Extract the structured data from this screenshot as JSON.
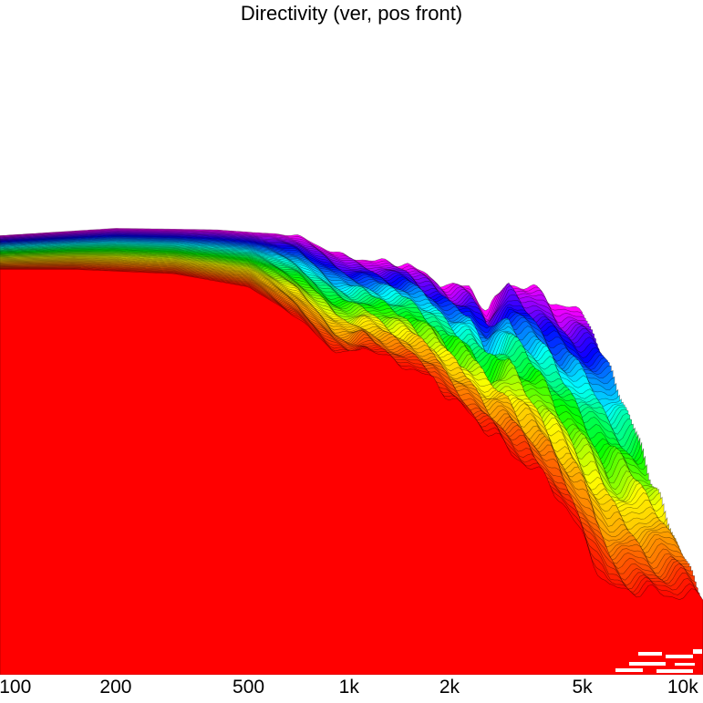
{
  "chart_data": {
    "type": "area",
    "title": "Directivity (ver, pos front)",
    "xlabel": "",
    "ylabel": "",
    "x_scale": "log",
    "xlim": [
      90,
      11500
    ],
    "ylim": [
      -30,
      8
    ],
    "x_ticks": [
      {
        "value": 100,
        "label": "100"
      },
      {
        "value": 200,
        "label": "200"
      },
      {
        "value": 500,
        "label": "500"
      },
      {
        "value": 1000,
        "label": "1k"
      },
      {
        "value": 2000,
        "label": "2k"
      },
      {
        "value": 5000,
        "label": "5k"
      },
      {
        "value": 10000,
        "label": "10k"
      }
    ],
    "grid": false,
    "legend": "none",
    "colormap": [
      "#ff0000",
      "#ff8800",
      "#ffff00",
      "#00ff00",
      "#00ffff",
      "#0000ff",
      "#ff00ff"
    ],
    "n_curves": 72,
    "front_curve": [
      [
        90,
        -2.3
      ],
      [
        150,
        -2.3
      ],
      [
        300,
        -2.6
      ],
      [
        500,
        -3.5
      ],
      [
        700,
        -5.6
      ],
      [
        900,
        -7.8
      ],
      [
        1000,
        -8.1
      ],
      [
        1100,
        -7.6
      ],
      [
        1300,
        -8.4
      ],
      [
        1500,
        -8.9
      ],
      [
        1800,
        -9.8
      ],
      [
        2000,
        -11.1
      ],
      [
        2500,
        -13.0
      ],
      [
        3000,
        -14.4
      ],
      [
        4000,
        -17.0
      ],
      [
        5000,
        -20.5
      ],
      [
        6000,
        -24.0
      ],
      [
        8000,
        -24.5
      ],
      [
        10000,
        -24.5
      ],
      [
        11500,
        -24.5
      ]
    ],
    "back_curve": [
      [
        90,
        0.0
      ],
      [
        200,
        0.5
      ],
      [
        400,
        0.4
      ],
      [
        700,
        0.0
      ],
      [
        800,
        -0.6
      ],
      [
        1000,
        -1.5
      ],
      [
        1200,
        -1.8
      ],
      [
        1500,
        -1.9
      ],
      [
        2000,
        -3.6
      ],
      [
        2300,
        -3.5
      ],
      [
        2600,
        -5.3
      ],
      [
        3000,
        -3.0
      ],
      [
        3500,
        -3.7
      ],
      [
        3800,
        -4.0
      ],
      [
        4300,
        -5.0
      ],
      [
        5000,
        -5.2
      ]
    ]
  }
}
